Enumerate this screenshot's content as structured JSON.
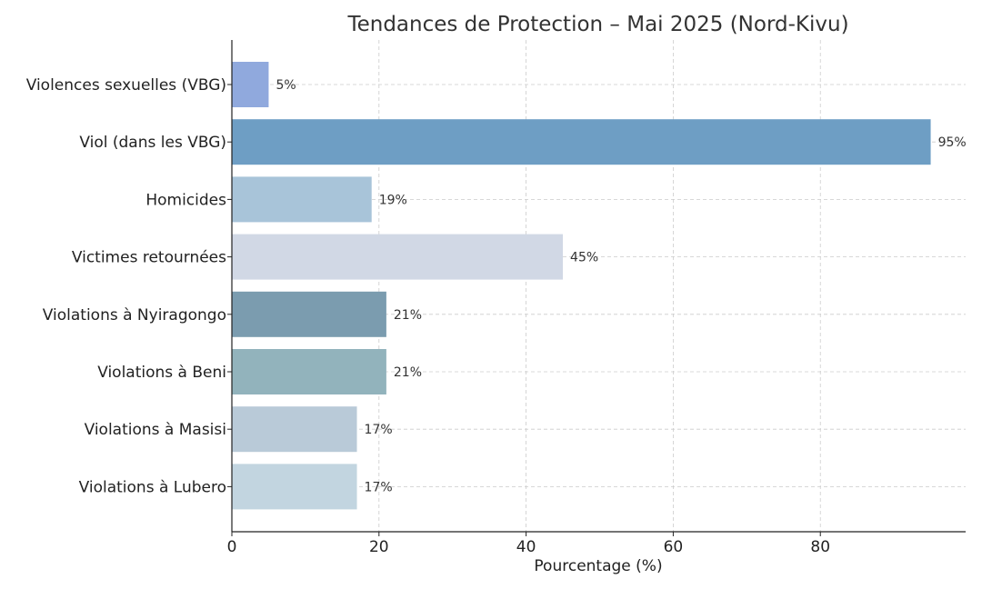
{
  "chart_data": {
    "type": "bar",
    "orientation": "horizontal",
    "title": "Tendances de Protection – Mai 2025 (Nord-Kivu)",
    "xlabel": "Pourcentage (%)",
    "ylabel": "",
    "xlim": [
      0,
      99.75
    ],
    "xticks": [
      0,
      20,
      40,
      60,
      80
    ],
    "grid": true,
    "categories": [
      "Violences sexuelles (VBG)",
      "Viol (dans les VBG)",
      "Homicides",
      "Victimes retournées",
      "Violations à Nyiragongo",
      "Violations à Beni",
      "Violations à Masisi",
      "Violations à Lubero"
    ],
    "values": [
      5,
      95,
      19,
      45,
      21,
      21,
      17,
      17
    ],
    "data_labels": [
      "5%",
      "95%",
      "19%",
      "45%",
      "21%",
      "21%",
      "17%",
      "17%"
    ],
    "colors": [
      "#90a9dd",
      "#6e9ec4",
      "#a8c4d9",
      "#d1d8e5",
      "#7b9caf",
      "#92b3bc",
      "#b9cad8",
      "#c2d5e0"
    ]
  }
}
